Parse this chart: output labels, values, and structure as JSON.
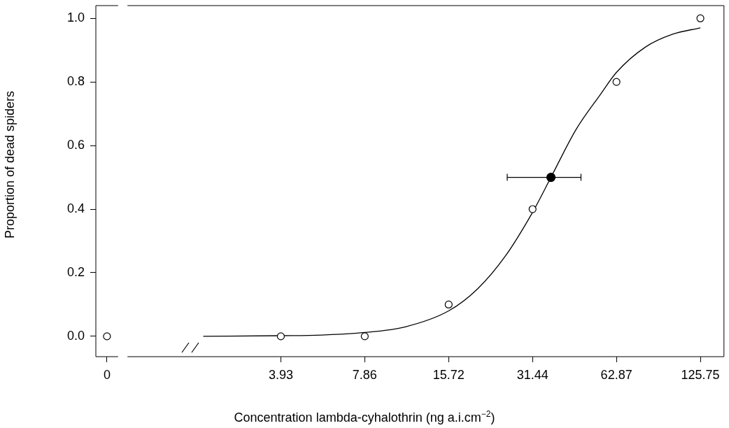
{
  "chart_data": [
    {
      "type": "scatter",
      "ylabel": "Proportion of dead spiders",
      "categories": [
        "0"
      ],
      "values": [
        0
      ],
      "color": "#000000",
      "marker": "circle",
      "grid": false,
      "legend": false,
      "ylim": [
        -0.064,
        1.04
      ],
      "yticks": [
        {
          "value": 0,
          "label": "0.0"
        },
        {
          "value": 0.2,
          "label": "0.2"
        },
        {
          "value": 0.4,
          "label": "0.4"
        },
        {
          "value": 0.6,
          "label": "0.6"
        },
        {
          "value": 0.8,
          "label": "0.8"
        },
        {
          "value": 1,
          "label": "1.0"
        }
      ]
    },
    {
      "type": "scatter",
      "xlabel": "Concentration lambda-cyhalothrin (ng a.i.cm$^{−2}$)",
      "log": "x",
      "grid": false,
      "legend": false,
      "marker": "circle",
      "tick_labels": "x",
      "xlim": [
        1.107,
        152.8
      ],
      "ylim": [
        -0.064,
        1.04
      ],
      "xticks": [
        3.93,
        7.86,
        15.72,
        31.44,
        62.87,
        125.75
      ],
      "series": [
        {
          "type": "scatter",
          "color": "#000000",
          "x": [
            3.93,
            7.86,
            15.72,
            31.44,
            62.87,
            125.75
          ],
          "values": [
            0,
            0,
            0.1,
            0.4,
            0.8,
            1.0
          ]
        },
        {
          "type": "line",
          "color": "#000000",
          "marker": "none",
          "x": [
            2.07,
            3.93,
            5.5,
            7.86,
            11,
            15.72,
            20,
            25,
            31.44,
            36.6,
            45,
            55,
            62.87,
            80,
            100,
            125.75
          ],
          "values": [
            0,
            0.002,
            0.004,
            0.012,
            0.03,
            0.08,
            0.15,
            0.25,
            0.39,
            0.5,
            0.65,
            0.76,
            0.83,
            0.91,
            0.95,
            0.97
          ]
        },
        {
          "type": "scatter",
          "color": "#000000",
          "x": [
            36.6
          ],
          "values": [
            0.5
          ],
          "xerrors": [
            [
              25.5,
              46.9
            ]
          ]
        }
      ]
    }
  ]
}
